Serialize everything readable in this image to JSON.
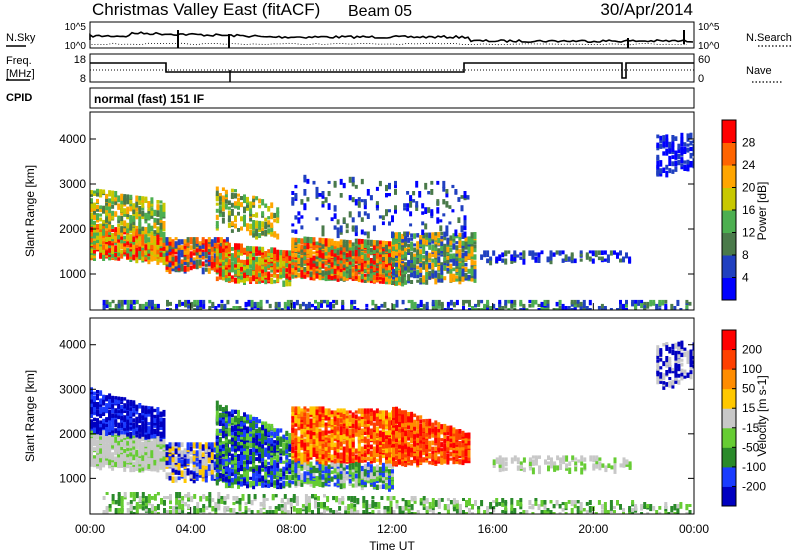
{
  "header": {
    "station": "Christmas Valley East (fitACF)",
    "beam": "Beam 05",
    "date": "30/Apr/2014"
  },
  "panels": {
    "noise": {
      "left_label": "N.Sky",
      "right_label": "N.Search",
      "left_ticks": [
        "10^5",
        "10^0"
      ],
      "right_ticks": [
        "10^5",
        "10^0"
      ]
    },
    "freq": {
      "left_label_line1": "Freq.",
      "left_label_line2": "[MHz]",
      "right_label": "Nave",
      "left_ticks": [
        "18",
        "8"
      ],
      "right_ticks": [
        "60",
        "0"
      ]
    },
    "cpid": {
      "label": "CPID",
      "mode": "normal (fast) 151 IF"
    }
  },
  "chart_data": [
    {
      "type": "heatmap",
      "name": "power",
      "xlabel": "",
      "ylabel": "Slant Range [km]",
      "yticks": [
        "1000",
        "2000",
        "3000",
        "4000"
      ],
      "ylim": [
        200,
        4600
      ],
      "colorbar_label": "Power [dB]",
      "colorbar_ticks": [
        "28",
        "24",
        "20",
        "16",
        "12",
        "8",
        "4"
      ],
      "colorbar_colors": [
        "#0000ff",
        "#2040c0",
        "#4a7a4a",
        "#4caf50",
        "#c8c800",
        "#ffa500",
        "#ff6400",
        "#ff0000"
      ]
    },
    {
      "type": "heatmap",
      "name": "velocity",
      "xlabel": "Time UT",
      "ylabel": "Slant Range [km]",
      "yticks": [
        "1000",
        "2000",
        "3000",
        "4000"
      ],
      "ylim": [
        200,
        4600
      ],
      "xticks": [
        "00:00",
        "04:00",
        "08:00",
        "12:00",
        "16:00",
        "20:00",
        "00:00"
      ],
      "colorbar_label": "Velocity [m s-1]",
      "colorbar_ticks": [
        "200",
        "100",
        "50",
        "15",
        "-15",
        "-50",
        "-100",
        "-200"
      ],
      "colorbar_colors": [
        "#0000c0",
        "#1a3cff",
        "#2a8a2a",
        "#66cc33",
        "#c8c8c8",
        "#ffc800",
        "#ff8c00",
        "#ff4000",
        "#ff0000"
      ]
    }
  ]
}
